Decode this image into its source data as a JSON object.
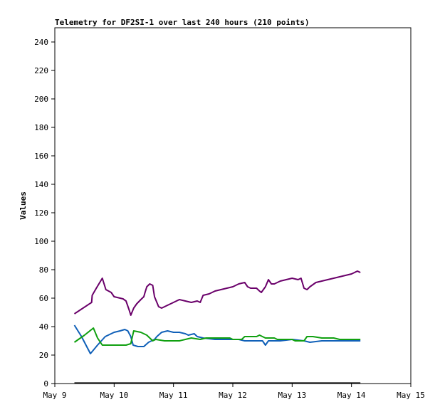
{
  "chart_data": {
    "type": "line",
    "title": "Telemetry for DF2SI-1 over last 240 hours (210 points)",
    "xlabel": "",
    "ylabel": "Values",
    "x_unit": "days",
    "xlim": [
      9,
      15
    ],
    "ylim": [
      0,
      250
    ],
    "x_ticks": [
      {
        "value": 9,
        "label": "May 9"
      },
      {
        "value": 10,
        "label": "May 10"
      },
      {
        "value": 11,
        "label": "May 11"
      },
      {
        "value": 12,
        "label": "May 12"
      },
      {
        "value": 13,
        "label": "May 13"
      },
      {
        "value": 14,
        "label": "May 14"
      },
      {
        "value": 15,
        "label": "May 15"
      }
    ],
    "y_ticks": [
      0,
      20,
      40,
      60,
      80,
      100,
      120,
      140,
      160,
      180,
      200,
      220,
      240
    ],
    "grid": false,
    "legend": "none",
    "series": [
      {
        "color": "#6a006a",
        "points": [
          [
            9.33,
            49
          ],
          [
            9.62,
            57
          ],
          [
            9.63,
            62
          ],
          [
            9.7,
            67
          ],
          [
            9.8,
            74
          ],
          [
            9.86,
            66
          ],
          [
            9.95,
            64
          ],
          [
            10.0,
            61
          ],
          [
            10.1,
            60
          ],
          [
            10.15,
            59.5
          ],
          [
            10.2,
            58
          ],
          [
            10.25,
            52
          ],
          [
            10.28,
            48
          ],
          [
            10.33,
            53
          ],
          [
            10.38,
            56
          ],
          [
            10.45,
            59
          ],
          [
            10.5,
            61
          ],
          [
            10.52,
            64
          ],
          [
            10.55,
            68
          ],
          [
            10.6,
            70
          ],
          [
            10.65,
            69
          ],
          [
            10.68,
            61
          ],
          [
            10.75,
            54
          ],
          [
            10.8,
            53
          ],
          [
            10.9,
            55
          ],
          [
            11.0,
            57
          ],
          [
            11.1,
            59
          ],
          [
            11.2,
            58
          ],
          [
            11.3,
            57
          ],
          [
            11.4,
            58
          ],
          [
            11.45,
            57
          ],
          [
            11.5,
            62
          ],
          [
            11.6,
            63
          ],
          [
            11.7,
            65
          ],
          [
            11.8,
            66
          ],
          [
            11.9,
            67
          ],
          [
            12.0,
            68
          ],
          [
            12.1,
            70
          ],
          [
            12.2,
            71
          ],
          [
            12.25,
            68
          ],
          [
            12.3,
            67
          ],
          [
            12.4,
            67
          ],
          [
            12.45,
            65
          ],
          [
            12.48,
            64
          ],
          [
            12.55,
            68
          ],
          [
            12.6,
            73
          ],
          [
            12.65,
            70
          ],
          [
            12.7,
            70
          ],
          [
            12.8,
            72
          ],
          [
            12.9,
            73
          ],
          [
            13.0,
            74
          ],
          [
            13.1,
            73
          ],
          [
            13.15,
            74
          ],
          [
            13.2,
            67
          ],
          [
            13.25,
            66
          ],
          [
            13.3,
            68
          ],
          [
            13.4,
            71
          ],
          [
            13.5,
            72
          ],
          [
            13.6,
            73
          ],
          [
            13.7,
            74
          ],
          [
            13.8,
            75
          ],
          [
            13.9,
            76
          ],
          [
            14.0,
            77
          ],
          [
            14.05,
            78
          ],
          [
            14.1,
            79
          ],
          [
            14.15,
            78
          ]
        ]
      },
      {
        "color": "#1060b8",
        "points": [
          [
            9.33,
            41
          ],
          [
            9.45,
            33
          ],
          [
            9.6,
            21
          ],
          [
            9.72,
            27
          ],
          [
            9.85,
            33
          ],
          [
            10.0,
            36
          ],
          [
            10.1,
            37
          ],
          [
            10.18,
            38
          ],
          [
            10.23,
            37
          ],
          [
            10.28,
            33
          ],
          [
            10.32,
            27
          ],
          [
            10.4,
            26
          ],
          [
            10.5,
            26
          ],
          [
            10.58,
            29
          ],
          [
            10.68,
            31
          ],
          [
            10.72,
            33
          ],
          [
            10.8,
            36
          ],
          [
            10.9,
            37
          ],
          [
            11.0,
            36
          ],
          [
            11.1,
            36
          ],
          [
            11.2,
            35
          ],
          [
            11.25,
            34
          ],
          [
            11.35,
            35
          ],
          [
            11.4,
            33
          ],
          [
            11.5,
            32
          ],
          [
            11.7,
            31
          ],
          [
            11.9,
            31
          ],
          [
            12.1,
            31
          ],
          [
            12.2,
            30
          ],
          [
            12.4,
            30
          ],
          [
            12.5,
            30
          ],
          [
            12.55,
            27
          ],
          [
            12.6,
            30
          ],
          [
            12.8,
            30
          ],
          [
            13.0,
            31
          ],
          [
            13.2,
            30
          ],
          [
            13.3,
            29
          ],
          [
            13.5,
            30
          ],
          [
            13.8,
            30
          ],
          [
            14.0,
            30
          ],
          [
            14.15,
            30
          ]
        ]
      },
      {
        "color": "#10a010",
        "points": [
          [
            9.33,
            29
          ],
          [
            9.5,
            34
          ],
          [
            9.65,
            39
          ],
          [
            9.72,
            32
          ],
          [
            9.8,
            27
          ],
          [
            9.95,
            27
          ],
          [
            10.2,
            27
          ],
          [
            10.28,
            28
          ],
          [
            10.33,
            37
          ],
          [
            10.45,
            36
          ],
          [
            10.55,
            34
          ],
          [
            10.65,
            30
          ],
          [
            10.7,
            31
          ],
          [
            10.85,
            30
          ],
          [
            11.1,
            30
          ],
          [
            11.2,
            31
          ],
          [
            11.3,
            32
          ],
          [
            11.45,
            31
          ],
          [
            11.55,
            32
          ],
          [
            11.8,
            32
          ],
          [
            11.95,
            32
          ],
          [
            12.0,
            31
          ],
          [
            12.15,
            31
          ],
          [
            12.2,
            33
          ],
          [
            12.4,
            33
          ],
          [
            12.45,
            34
          ],
          [
            12.55,
            32
          ],
          [
            12.7,
            32
          ],
          [
            12.75,
            31
          ],
          [
            13.0,
            31
          ],
          [
            13.05,
            30
          ],
          [
            13.2,
            30
          ],
          [
            13.25,
            33
          ],
          [
            13.35,
            33
          ],
          [
            13.5,
            32
          ],
          [
            13.7,
            32
          ],
          [
            13.8,
            31
          ],
          [
            14.0,
            31
          ],
          [
            14.15,
            31
          ]
        ]
      },
      {
        "color": "#000000",
        "points": [
          [
            9.33,
            0.3
          ],
          [
            14.15,
            0.3
          ]
        ]
      }
    ]
  }
}
